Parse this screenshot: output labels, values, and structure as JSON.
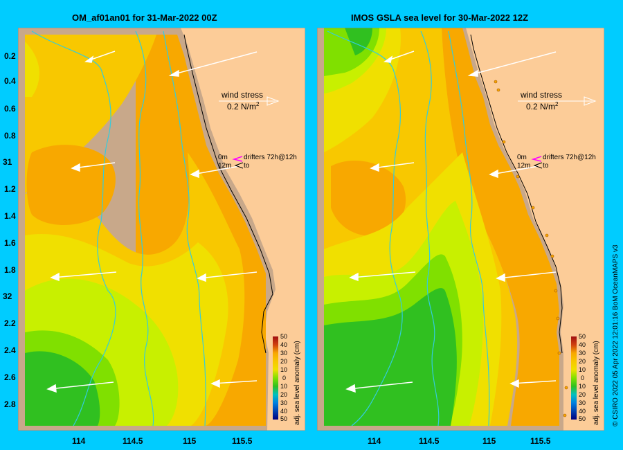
{
  "panels": [
    {
      "title": "OM_af01an01 for 31-Mar-2022 00Z"
    },
    {
      "title": "IMOS GSLA sea level  for 30-Mar-2022 12Z"
    }
  ],
  "axes": {
    "lat_ticks": [
      "0.2",
      "0.4",
      "0.6",
      "0.8",
      "31",
      "1.2",
      "1.4",
      "1.6",
      "1.8",
      "32",
      "2.2",
      "2.4",
      "2.6",
      "2.8"
    ],
    "lon_ticks": [
      "114",
      "114.5",
      "115",
      "115.5"
    ]
  },
  "legend": {
    "wind_stress_label": "wind stress",
    "wind_stress_value": "0.2 N/m",
    "wind_stress_exp": "2",
    "drifters_top": "0m",
    "drifters_label": "drifters 72h@12h",
    "drifters_bottom": "12m",
    "drifters_to": "to"
  },
  "colorbar": {
    "title": "adj. sea level anomaly (cm)",
    "ticks": [
      "50",
      "40",
      "30",
      "20",
      "10",
      "0",
      "10",
      "20",
      "30",
      "40",
      "50"
    ]
  },
  "credit": "© CSIRO 2022   05 Apr 2022 12:01:16 BoM OceanMAPS v3",
  "colors": {
    "background": "#00ccff",
    "land": "#fccc98",
    "coast_shelf": "#c8a88a",
    "orange": "#f8a800",
    "yellow_orange": "#f8c800",
    "yellow": "#f0e000",
    "yellow_green": "#c8f000",
    "light_green": "#80e000",
    "green": "#30c020"
  }
}
